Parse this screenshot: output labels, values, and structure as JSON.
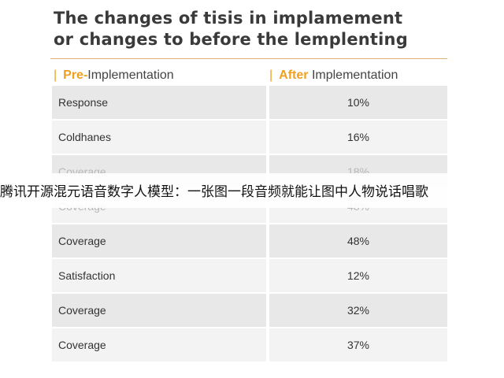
{
  "title_line1": "The changes of tisis in implamement",
  "title_line2": "or changes to before the lemplenting",
  "header": {
    "pre_hl": "Pre-",
    "pre_rest": "Implementation",
    "after_hl": "After",
    "after_rest": "Implementation"
  },
  "rows": [
    {
      "label": "Response",
      "value": "10%"
    },
    {
      "label": "Coldhanes",
      "value": "16%"
    },
    {
      "label": "Coverage",
      "value": "18%"
    },
    {
      "label": "Coverage",
      "value": "48%"
    },
    {
      "label": "Coverage",
      "value": "48%"
    },
    {
      "label": "Satisfaction",
      "value": "12%"
    },
    {
      "label": "Coverage",
      "value": "32%"
    },
    {
      "label": "Coverage",
      "value": "37%"
    }
  ],
  "overlay_caption": "腾讯开源混元语音数字人模型：一张图一段音频就能让图中人物说话唱歌",
  "colors": {
    "accent": "#f0a020",
    "row": "#e8e8e8",
    "row_alt": "#f3f3f3"
  }
}
